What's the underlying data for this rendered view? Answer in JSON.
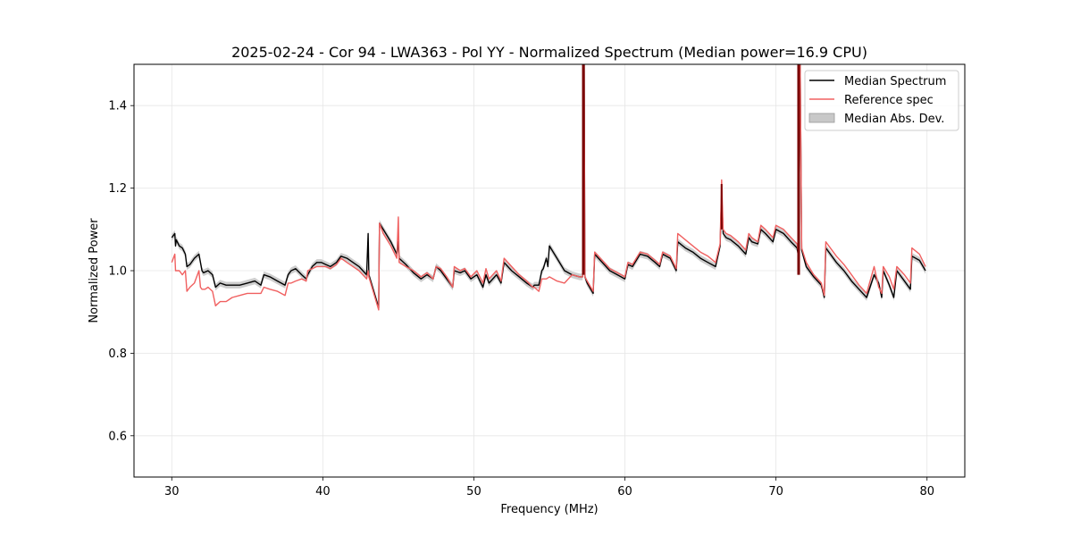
{
  "chart_data": {
    "type": "line",
    "title": "2025-02-24 - Cor 94 - LWA363 - Pol YY - Normalized Spectrum (Median power=16.9 CPU)",
    "xlabel": "Frequency (MHz)",
    "ylabel": "Normalized Power",
    "xlim": [
      27.5,
      82.5
    ],
    "ylim": [
      0.5,
      1.5
    ],
    "xticks": [
      30,
      40,
      50,
      60,
      70,
      80
    ],
    "xtick_labels": [
      "30",
      "40",
      "50",
      "60",
      "70",
      "80"
    ],
    "yticks": [
      0.6,
      0.8,
      1.0,
      1.2,
      1.4
    ],
    "ytick_labels": [
      "0.6",
      "0.8",
      "1.0",
      "1.2",
      "1.4"
    ],
    "grid": true,
    "legend": {
      "location": "top-right",
      "entries": [
        "Median Spectrum",
        "Reference spec",
        "Median Abs. Dev."
      ]
    },
    "colors": {
      "median": "#000000",
      "reference": "#f06060",
      "mad_fill": "#c8c8c8",
      "overlap": "#7a0000"
    },
    "series": [
      {
        "name": "Median Spectrum",
        "x": [
          30.0,
          30.1,
          30.2,
          30.25,
          30.3,
          30.5,
          30.7,
          30.9,
          31.0,
          31.2,
          31.5,
          31.8,
          31.9,
          32.0,
          32.1,
          32.4,
          32.7,
          32.9,
          33.2,
          33.6,
          34.0,
          34.5,
          35.0,
          35.5,
          35.9,
          36.1,
          36.5,
          37.0,
          37.5,
          37.7,
          37.9,
          38.2,
          38.6,
          38.9,
          39.0,
          39.3,
          39.6,
          39.9,
          40.2,
          40.5,
          40.9,
          41.2,
          41.6,
          42.0,
          42.4,
          42.9,
          43.0,
          43.05,
          43.7,
          43.75,
          44.0,
          44.5,
          44.9,
          45.0,
          45.05,
          45.5,
          46.0,
          46.5,
          46.9,
          47.3,
          47.5,
          47.8,
          48.2,
          48.6,
          48.7,
          49.1,
          49.4,
          49.8,
          50.2,
          50.6,
          50.8,
          51.0,
          51.5,
          51.8,
          52.0,
          52.5,
          53.0,
          53.5,
          53.9,
          54.0,
          54.3,
          54.5,
          54.6,
          54.8,
          54.9,
          55.0,
          55.5,
          56.0,
          56.5,
          57.0,
          57.2,
          57.25,
          57.3,
          57.35,
          57.5,
          57.9,
          58.0,
          58.5,
          59.0,
          59.5,
          60.0,
          60.2,
          60.5,
          61.0,
          61.5,
          62.0,
          62.3,
          62.5,
          63.0,
          63.4,
          63.5,
          64.0,
          64.5,
          65.0,
          65.5,
          66.0,
          66.3,
          66.4,
          66.5,
          66.7,
          67.0,
          67.5,
          68.0,
          68.2,
          68.4,
          68.8,
          69.0,
          69.3,
          69.8,
          70.0,
          70.5,
          71.0,
          71.4,
          71.5,
          71.55,
          71.6,
          71.7,
          72.0,
          72.5,
          73.0,
          73.2,
          73.3,
          73.5,
          74.0,
          74.5,
          75.0,
          75.5,
          76.0,
          76.5,
          76.8,
          77.0,
          77.1,
          77.5,
          77.8,
          78.0,
          78.5,
          78.9,
          79.0,
          79.5,
          79.9
        ],
        "values": [
          1.08,
          1.085,
          1.09,
          1.06,
          1.075,
          1.06,
          1.055,
          1.04,
          1.01,
          1.015,
          1.03,
          1.04,
          1.02,
          1.0,
          0.995,
          1.0,
          0.99,
          0.96,
          0.97,
          0.965,
          0.965,
          0.965,
          0.97,
          0.975,
          0.965,
          0.99,
          0.985,
          0.975,
          0.965,
          0.99,
          1.0,
          1.005,
          0.99,
          0.98,
          0.99,
          1.01,
          1.02,
          1.02,
          1.015,
          1.01,
          1.02,
          1.035,
          1.03,
          1.02,
          1.01,
          0.99,
          1.09,
          0.99,
          0.91,
          1.115,
          1.1,
          1.07,
          1.04,
          1.07,
          1.03,
          1.015,
          0.995,
          0.98,
          0.99,
          0.98,
          1.01,
          1.0,
          0.98,
          0.96,
          1.0,
          0.995,
          1.0,
          0.98,
          0.99,
          0.96,
          0.99,
          0.97,
          0.99,
          0.97,
          1.02,
          1.0,
          0.985,
          0.97,
          0.96,
          0.965,
          0.965,
          1.0,
          1.005,
          1.03,
          1.01,
          1.06,
          1.03,
          1.0,
          0.99,
          0.985,
          0.985,
          1.5,
          1.5,
          0.985,
          0.97,
          0.945,
          1.04,
          1.02,
          1.0,
          0.99,
          0.98,
          1.015,
          1.01,
          1.04,
          1.035,
          1.02,
          1.01,
          1.04,
          1.03,
          1.0,
          1.07,
          1.055,
          1.045,
          1.03,
          1.02,
          1.01,
          1.06,
          1.19,
          1.09,
          1.08,
          1.075,
          1.06,
          1.04,
          1.08,
          1.07,
          1.065,
          1.1,
          1.09,
          1.07,
          1.1,
          1.09,
          1.07,
          1.055,
          1.03,
          1.5,
          1.5,
          1.05,
          1.01,
          0.985,
          0.965,
          0.935,
          1.055,
          1.045,
          1.02,
          1.0,
          0.975,
          0.955,
          0.935,
          0.99,
          0.97,
          0.935,
          1.0,
          0.965,
          0.935,
          1.0,
          0.975,
          0.955,
          1.035,
          1.025,
          1.0
        ],
        "spread": 0.008
      },
      {
        "name": "Reference spec",
        "x": [
          30.0,
          30.1,
          30.2,
          30.25,
          30.5,
          30.7,
          30.9,
          31.0,
          31.2,
          31.5,
          31.8,
          31.9,
          32.0,
          32.2,
          32.4,
          32.7,
          32.9,
          33.2,
          33.6,
          34.0,
          34.5,
          35.0,
          35.5,
          35.9,
          36.1,
          36.5,
          37.0,
          37.5,
          37.7,
          37.9,
          38.2,
          38.6,
          38.9,
          39.0,
          39.3,
          39.6,
          39.9,
          40.2,
          40.5,
          40.9,
          41.2,
          41.6,
          42.0,
          42.4,
          42.9,
          43.0,
          43.05,
          43.7,
          43.75,
          44.0,
          44.5,
          44.9,
          45.0,
          45.05,
          45.5,
          46.0,
          46.5,
          46.9,
          47.3,
          47.5,
          47.8,
          48.2,
          48.6,
          48.7,
          49.1,
          49.4,
          49.8,
          50.2,
          50.6,
          50.8,
          51.0,
          51.5,
          51.8,
          52.0,
          52.5,
          53.0,
          53.5,
          53.9,
          54.0,
          54.3,
          54.5,
          54.6,
          54.8,
          55.0,
          55.5,
          56.0,
          56.5,
          57.0,
          57.2,
          57.25,
          57.3,
          57.35,
          57.5,
          57.9,
          58.0,
          58.5,
          59.0,
          59.5,
          60.0,
          60.2,
          60.5,
          61.0,
          61.5,
          62.0,
          62.3,
          62.5,
          63.0,
          63.4,
          63.5,
          64.0,
          64.5,
          65.0,
          65.5,
          66.0,
          66.3,
          66.4,
          66.5,
          66.7,
          67.0,
          67.5,
          68.0,
          68.2,
          68.4,
          68.8,
          69.0,
          69.3,
          69.8,
          70.0,
          70.5,
          71.0,
          71.4,
          71.5,
          71.55,
          71.6,
          71.7,
          72.0,
          72.5,
          73.0,
          73.2,
          73.3,
          73.5,
          74.0,
          74.5,
          75.0,
          75.5,
          76.0,
          76.5,
          76.8,
          77.0,
          77.1,
          77.5,
          77.8,
          78.0,
          78.5,
          78.9,
          79.0,
          79.5,
          79.9
        ],
        "values": [
          1.02,
          1.03,
          1.04,
          1.0,
          1.0,
          0.99,
          1.0,
          0.95,
          0.96,
          0.97,
          1.0,
          0.96,
          0.955,
          0.955,
          0.96,
          0.95,
          0.915,
          0.925,
          0.925,
          0.935,
          0.94,
          0.945,
          0.945,
          0.945,
          0.96,
          0.955,
          0.95,
          0.94,
          0.97,
          0.97,
          0.975,
          0.98,
          0.975,
          1.0,
          1.005,
          1.01,
          1.01,
          1.01,
          1.005,
          1.015,
          1.03,
          1.02,
          1.01,
          1.0,
          0.98,
          1.0,
          0.985,
          0.905,
          1.115,
          1.09,
          1.06,
          1.03,
          1.13,
          1.02,
          1.01,
          1.0,
          0.985,
          0.995,
          0.98,
          1.01,
          1.005,
          0.985,
          0.96,
          1.01,
          1.0,
          1.005,
          0.985,
          1.0,
          0.97,
          1.005,
          0.98,
          1.0,
          0.975,
          1.03,
          1.01,
          0.99,
          0.975,
          0.96,
          0.96,
          0.95,
          0.98,
          0.98,
          0.98,
          0.985,
          0.975,
          0.97,
          0.99,
          0.985,
          0.985,
          1.5,
          1.5,
          0.985,
          0.975,
          0.95,
          1.045,
          1.025,
          1.005,
          0.995,
          0.985,
          1.02,
          1.015,
          1.045,
          1.04,
          1.025,
          1.015,
          1.045,
          1.035,
          1.005,
          1.09,
          1.075,
          1.06,
          1.045,
          1.035,
          1.02,
          1.065,
          1.22,
          1.1,
          1.09,
          1.085,
          1.07,
          1.05,
          1.09,
          1.08,
          1.07,
          1.11,
          1.1,
          1.08,
          1.11,
          1.1,
          1.08,
          1.065,
          1.035,
          1.5,
          1.5,
          1.055,
          1.02,
          0.99,
          0.97,
          0.94,
          1.07,
          1.06,
          1.035,
          1.015,
          0.99,
          0.965,
          0.945,
          1.01,
          0.96,
          0.945,
          1.01,
          0.985,
          0.955,
          1.01,
          0.99,
          0.97,
          1.055,
          1.04,
          1.01
        ]
      }
    ]
  }
}
